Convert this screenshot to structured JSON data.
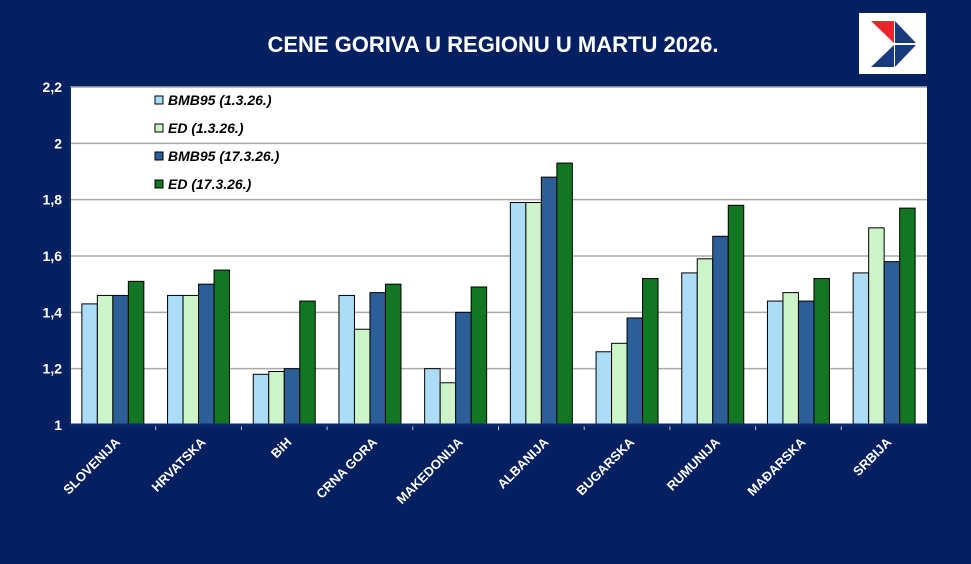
{
  "chart_data": {
    "type": "bar",
    "title": "CENE GORIVA U REGIONU U MARTU 2026.",
    "xlabel": "",
    "ylabel": "",
    "ylim": [
      1,
      2.2
    ],
    "yticks": [
      "1",
      "1,2",
      "1,4",
      "1,6",
      "1,8",
      "2",
      "2,2"
    ],
    "grid": true,
    "legend_position": "top-left inside",
    "categories": [
      "SLOVENIJA",
      "HRVATSKA",
      "BiH",
      "CRNA GORA",
      "MAKEDONIJA",
      "ALBANIJA",
      "BUGARSKA",
      "RUMUNIJA",
      "MAĐARSKA",
      "SRBIJA"
    ],
    "series": [
      {
        "name": "BMB95 (1.3.26.)",
        "color": "#ADDCF7",
        "values": [
          1.43,
          1.46,
          1.18,
          1.46,
          1.2,
          1.79,
          1.26,
          1.54,
          1.44,
          1.54
        ]
      },
      {
        "name": "ED (1.3.26.)",
        "color": "#CDF3C8",
        "values": [
          1.46,
          1.46,
          1.19,
          1.34,
          1.15,
          1.79,
          1.29,
          1.59,
          1.47,
          1.7
        ]
      },
      {
        "name": "BMB95 (17.3.26.)",
        "color": "#2C5F98",
        "values": [
          1.46,
          1.5,
          1.2,
          1.47,
          1.4,
          1.88,
          1.38,
          1.67,
          1.44,
          1.58
        ]
      },
      {
        "name": "ED (17.3.26.)",
        "color": "#137622",
        "values": [
          1.51,
          1.55,
          1.44,
          1.5,
          1.49,
          1.93,
          1.52,
          1.78,
          1.52,
          1.77
        ]
      }
    ]
  },
  "colors": {
    "background": "#052060",
    "plot": "#FFFFFF",
    "grid": "#AAAAAA",
    "logo_red": "#E8252B",
    "logo_blue": "#1A3A80"
  },
  "logo": {
    "icon": "arrow-chevron-logo"
  }
}
